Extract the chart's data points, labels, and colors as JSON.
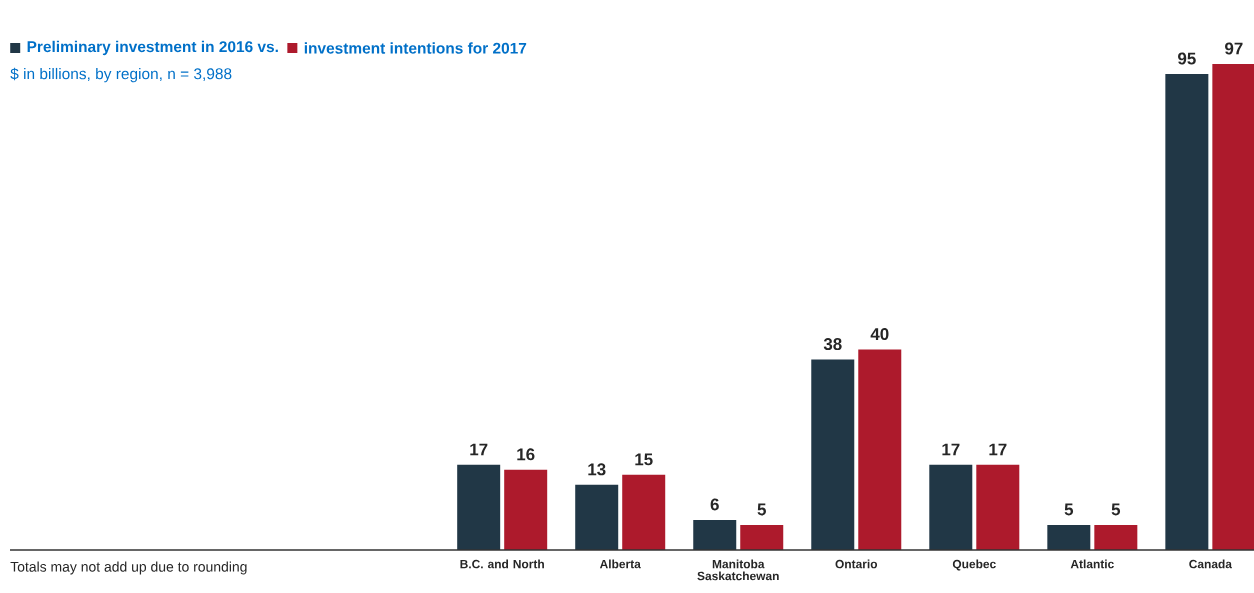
{
  "chart_data": {
    "type": "bar",
    "subtitle": "$ in billions, by region, n = 3,988",
    "categories": [
      "B.C. and North",
      "Alberta",
      "Manitoba Saskatchewan",
      "Ontario",
      "Quebec",
      "Atlantic",
      "Canada"
    ],
    "series": [
      {
        "name": "Preliminary investment in 2016 vs.",
        "color": "#213746",
        "values": [
          17,
          13,
          6,
          38,
          17,
          5,
          95
        ]
      },
      {
        "name": "investment intentions for 2017",
        "color": "#ad1a2c",
        "values": [
          16,
          15,
          5,
          40,
          17,
          5,
          97
        ]
      }
    ],
    "data_labels": true,
    "legend": "top left",
    "annotations": [
      "Totals may not add up due to rounding"
    ]
  }
}
